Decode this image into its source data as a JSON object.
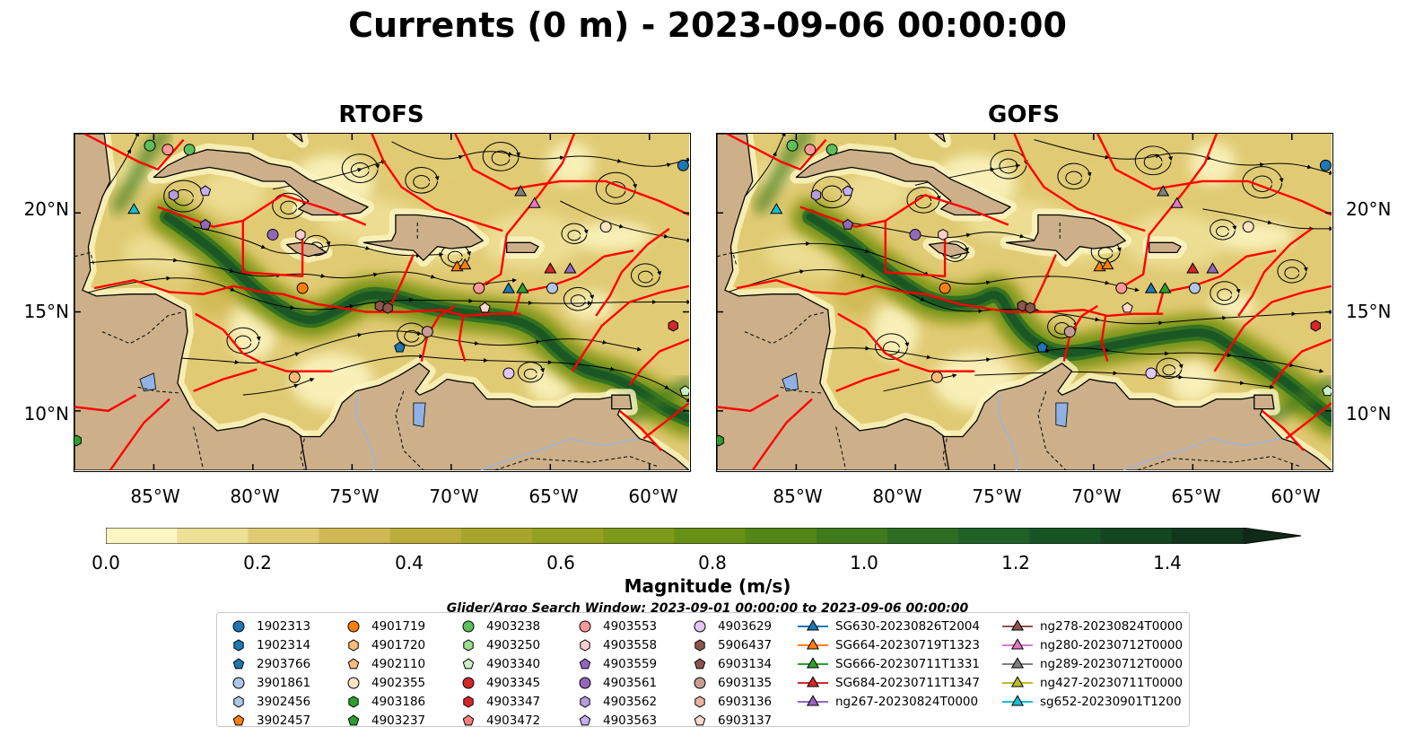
{
  "title": "Currents (0 m) - 2023-09-06 00:00:00",
  "panels": [
    {
      "name": "rtofs",
      "title": "RTOFS"
    },
    {
      "name": "gofs",
      "title": "GOFS"
    }
  ],
  "map": {
    "lon_range": [
      -89,
      -58
    ],
    "lat_range": [
      7,
      24
    ],
    "lon_ticks": [
      "85°W",
      "80°W",
      "75°W",
      "70°W",
      "65°W",
      "60°W"
    ],
    "lat_ticks": [
      "20°N",
      "15°N",
      "10°N"
    ],
    "land_color": "#cdb08a",
    "boundary_color": "#ff0000",
    "river_color": "#9db4d8"
  },
  "colorbar": {
    "label": "Magnitude (m/s)",
    "ticks": [
      "0.0",
      "0.2",
      "0.4",
      "0.6",
      "0.8",
      "1.0",
      "1.2",
      "1.4"
    ],
    "min": 0.0,
    "max": 1.5,
    "extend": "max",
    "colors": [
      "#fdf6c3",
      "#efe098",
      "#e0cb74",
      "#cfb954",
      "#bcac3c",
      "#a8a52c",
      "#93a021",
      "#7e9a1a",
      "#689016",
      "#538617",
      "#3f7b1d",
      "#2d6e22",
      "#1f6126",
      "#175425",
      "#134622",
      "#11381c",
      "#0f2a15"
    ]
  },
  "search_window": "Glider/Argo Search Window: 2023-09-01 00:00:00 to 2023-09-06 00:00:00",
  "legend": {
    "columns": [
      [
        {
          "label": "1902313",
          "marker": "circle",
          "color": "#1f77b4"
        },
        {
          "label": "1902314",
          "marker": "hexagon",
          "color": "#1f77b4"
        },
        {
          "label": "2903766",
          "marker": "pentagon",
          "color": "#1f77b4"
        },
        {
          "label": "3901861",
          "marker": "circle",
          "color": "#aec7e8"
        },
        {
          "label": "3902456",
          "marker": "hexagon",
          "color": "#aec7e8"
        },
        {
          "label": "3902457",
          "marker": "pentagon",
          "color": "#ff7f0e"
        }
      ],
      [
        {
          "label": "4901719",
          "marker": "circle",
          "color": "#ff7f0e"
        },
        {
          "label": "4901720",
          "marker": "hexagon",
          "color": "#ffbb78"
        },
        {
          "label": "4902110",
          "marker": "pentagon",
          "color": "#ffbb78"
        },
        {
          "label": "4902355",
          "marker": "circle",
          "color": "#ffe4c4"
        },
        {
          "label": "4903186",
          "marker": "hexagon",
          "color": "#2ca02c"
        },
        {
          "label": "4903237",
          "marker": "pentagon",
          "color": "#2ca02c"
        }
      ],
      [
        {
          "label": "4903238",
          "marker": "circle",
          "color": "#5cbf5c"
        },
        {
          "label": "4903250",
          "marker": "hexagon",
          "color": "#98df8a"
        },
        {
          "label": "4903340",
          "marker": "pentagon",
          "color": "#c8f0c0"
        },
        {
          "label": "4903345",
          "marker": "circle",
          "color": "#d62728"
        },
        {
          "label": "4903347",
          "marker": "hexagon",
          "color": "#d62728"
        },
        {
          "label": "4903472",
          "marker": "pentagon",
          "color": "#ff7f7f"
        }
      ],
      [
        {
          "label": "4903553",
          "marker": "circle",
          "color": "#ff9896"
        },
        {
          "label": "4903558",
          "marker": "hexagon",
          "color": "#ffcfcf"
        },
        {
          "label": "4903559",
          "marker": "pentagon",
          "color": "#9467bd"
        },
        {
          "label": "4903561",
          "marker": "circle",
          "color": "#9467bd"
        },
        {
          "label": "4903562",
          "marker": "hexagon",
          "color": "#b39ddb"
        },
        {
          "label": "4903563",
          "marker": "pentagon",
          "color": "#c5b0f0"
        }
      ],
      [
        {
          "label": "4903629",
          "marker": "circle",
          "color": "#e0c8f5"
        },
        {
          "label": "5906437",
          "marker": "hexagon",
          "color": "#8c564b"
        },
        {
          "label": "6903134",
          "marker": "pentagon",
          "color": "#8c564b"
        },
        {
          "label": "6903135",
          "marker": "circle",
          "color": "#c49c94"
        },
        {
          "label": "6903136",
          "marker": "hexagon",
          "color": "#e8b4a0"
        },
        {
          "label": "6903137",
          "marker": "pentagon",
          "color": "#ffd9cc"
        }
      ],
      [
        {
          "label": "SG630-20230826T2004",
          "marker": "triangle",
          "color": "#1f77b4"
        },
        {
          "label": "SG664-20230719T1323",
          "marker": "triangle",
          "color": "#ff7f0e"
        },
        {
          "label": "SG666-20230711T1331",
          "marker": "triangle",
          "color": "#2ca02c"
        },
        {
          "label": "SG684-20230711T1347",
          "marker": "triangle",
          "color": "#d62728"
        },
        {
          "label": "ng267-20230824T0000",
          "marker": "triangle",
          "color": "#9467bd"
        }
      ],
      [
        {
          "label": "ng278-20230824T0000",
          "marker": "triangle",
          "color": "#8c564b"
        },
        {
          "label": "ng280-20230712T0000",
          "marker": "triangle",
          "color": "#e377c2"
        },
        {
          "label": "ng289-20230712T0000",
          "marker": "triangle",
          "color": "#7f7f7f"
        },
        {
          "label": "ng427-20230711T0000",
          "marker": "triangle",
          "color": "#bcbd22"
        },
        {
          "label": "sg652-20230901T1200",
          "marker": "triangle",
          "color": "#17becf"
        }
      ]
    ]
  },
  "observations": [
    {
      "marker": "circle",
      "color": "#5cbf5c",
      "lon": -85.2,
      "lat": 23.4
    },
    {
      "marker": "circle",
      "color": "#ff9896",
      "lon": -84.3,
      "lat": 23.2
    },
    {
      "marker": "circle",
      "color": "#5cbf5c",
      "lon": -83.2,
      "lat": 23.2
    },
    {
      "marker": "circle",
      "color": "#1f77b4",
      "lon": -58.3,
      "lat": 22.4
    },
    {
      "marker": "hexagon",
      "color": "#b39ddb",
      "lon": -84.0,
      "lat": 20.9
    },
    {
      "marker": "pentagon",
      "color": "#c5b0f0",
      "lon": -82.4,
      "lat": 21.1
    },
    {
      "marker": "pentagon",
      "color": "#9467bd",
      "lon": -82.4,
      "lat": 19.4
    },
    {
      "marker": "circle",
      "color": "#9467bd",
      "lon": -79.0,
      "lat": 18.9
    },
    {
      "marker": "hexagon",
      "color": "#ffcfcf",
      "lon": -77.6,
      "lat": 18.9
    },
    {
      "marker": "circle",
      "color": "#ffe4c4",
      "lon": -62.2,
      "lat": 19.3
    },
    {
      "marker": "circle",
      "color": "#ff7f0e",
      "lon": -77.5,
      "lat": 16.2
    },
    {
      "marker": "circle",
      "color": "#ff9896",
      "lon": -68.6,
      "lat": 16.2
    },
    {
      "marker": "circle",
      "color": "#aec7e8",
      "lon": -64.9,
      "lat": 16.2
    },
    {
      "marker": "hexagon",
      "color": "#8c564b",
      "lon": -73.6,
      "lat": 15.3
    },
    {
      "marker": "hexagon",
      "color": "#8c564b",
      "lon": -73.2,
      "lat": 15.2
    },
    {
      "marker": "pentagon",
      "color": "#ffd9cc",
      "lon": -68.3,
      "lat": 15.2
    },
    {
      "marker": "circle",
      "color": "#c49c94",
      "lon": -71.2,
      "lat": 14.0
    },
    {
      "marker": "pentagon",
      "color": "#1f77b4",
      "lon": -72.6,
      "lat": 13.2
    },
    {
      "marker": "hexagon",
      "color": "#d62728",
      "lon": -58.8,
      "lat": 14.3
    },
    {
      "marker": "circle",
      "color": "#ffbb78",
      "lon": -77.9,
      "lat": 11.7
    },
    {
      "marker": "circle",
      "color": "#e0c8f5",
      "lon": -67.1,
      "lat": 11.9
    },
    {
      "marker": "pentagon",
      "color": "#c8f0c0",
      "lon": -58.2,
      "lat": 11.0
    },
    {
      "marker": "hexagon",
      "color": "#2ca02c",
      "lon": -88.9,
      "lat": 8.5
    },
    {
      "marker": "triangle",
      "color": "#17becf",
      "lon": -86.0,
      "lat": 20.2
    },
    {
      "marker": "triangle",
      "color": "#7f7f7f",
      "lon": -66.5,
      "lat": 21.1
    },
    {
      "marker": "triangle",
      "color": "#e377c2",
      "lon": -65.8,
      "lat": 20.5
    },
    {
      "marker": "triangle",
      "color": "#ff7f0e",
      "lon": -69.7,
      "lat": 17.3
    },
    {
      "marker": "triangle",
      "color": "#ff7f0e",
      "lon": -69.3,
      "lat": 17.4
    },
    {
      "marker": "triangle",
      "color": "#d62728",
      "lon": -65.0,
      "lat": 17.2
    },
    {
      "marker": "triangle",
      "color": "#9467bd",
      "lon": -64.0,
      "lat": 17.2
    },
    {
      "marker": "triangle",
      "color": "#1f77b4",
      "lon": -67.1,
      "lat": 16.2
    },
    {
      "marker": "triangle",
      "color": "#2ca02c",
      "lon": -66.4,
      "lat": 16.2
    }
  ]
}
